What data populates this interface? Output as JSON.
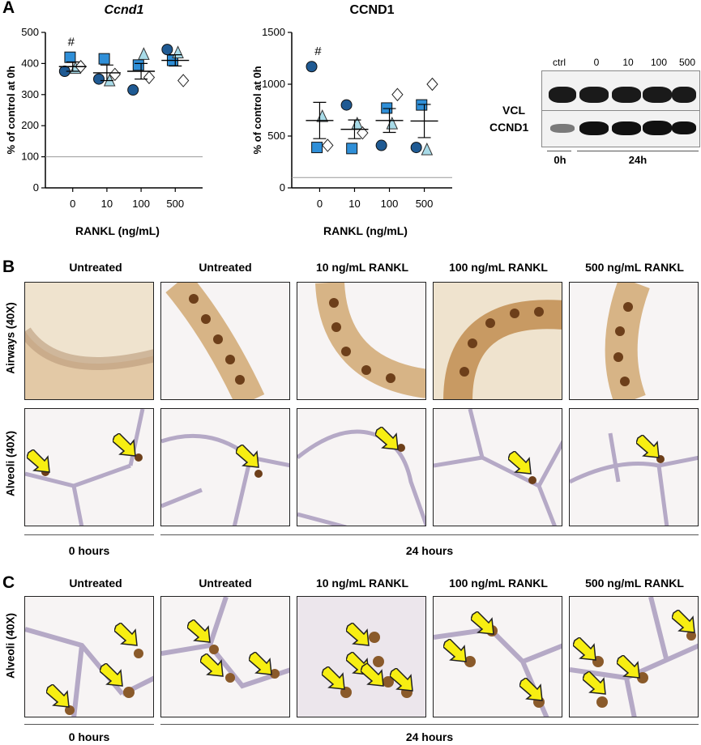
{
  "panel_labels": {
    "a": "A",
    "b": "B",
    "c": "C"
  },
  "colors": {
    "open": "#ffffff",
    "light": "#a8dbe8",
    "mid": "#2f8fd8",
    "dark": "#1f5a93",
    "arrow": "#f7ee12",
    "nucleus": "#7b4a1e"
  },
  "chart_data": [
    {
      "type": "scatter",
      "title": "Ccnd1",
      "xlabel": "RANKL (ng/mL)",
      "ylabel": "% of control at 0h",
      "categories": [
        "0",
        "10",
        "100",
        "500"
      ],
      "ylim": [
        0,
        500
      ],
      "yticks": [
        "0",
        "100",
        "200",
        "300",
        "400",
        "500"
      ],
      "reference_line": 100,
      "annotation": "#",
      "means": [
        390,
        370,
        375,
        410
      ],
      "sem": [
        15,
        25,
        25,
        18
      ],
      "series": [
        {
          "name": "circle",
          "values": [
            375,
            350,
            315,
            445
          ]
        },
        {
          "name": "square",
          "values": [
            420,
            415,
            395,
            410
          ]
        },
        {
          "name": "triangle",
          "values": [
            385,
            345,
            430,
            435
          ]
        },
        {
          "name": "diamond",
          "values": [
            390,
            365,
            355,
            345
          ]
        }
      ]
    },
    {
      "type": "scatter",
      "title": "CCND1",
      "xlabel": "RANKL (ng/mL)",
      "ylabel": "% of control at 0h",
      "categories": [
        "0",
        "10",
        "100",
        "500"
      ],
      "ylim": [
        0,
        1500
      ],
      "yticks": [
        "0",
        "500",
        "1000",
        "1500"
      ],
      "reference_line": 100,
      "annotation": "#",
      "means": [
        650,
        565,
        650,
        645
      ],
      "sem": [
        175,
        90,
        115,
        160
      ],
      "series": [
        {
          "name": "circle",
          "values": [
            1170,
            800,
            410,
            390
          ]
        },
        {
          "name": "square",
          "values": [
            390,
            380,
            770,
            800
          ]
        },
        {
          "name": "triangle",
          "values": [
            690,
            620,
            620,
            370
          ]
        },
        {
          "name": "diamond",
          "values": [
            410,
            530,
            900,
            1000
          ]
        }
      ]
    }
  ],
  "blot": {
    "lanes": [
      "ctrl",
      "0",
      "10",
      "100",
      "500"
    ],
    "rows": [
      "VCL",
      "CCND1"
    ],
    "time_0h": "0h",
    "time_24h": "24h"
  },
  "panel_b": {
    "columns": [
      "Untreated",
      "Untreated",
      "10 ng/mL RANKL",
      "100 ng/mL RANKL",
      "500 ng/mL RANKL"
    ],
    "rows": [
      "Airways (40X)",
      "Alveoli (40X)"
    ],
    "time_0": "0 hours",
    "time_24": "24 hours"
  },
  "panel_c": {
    "columns": [
      "Untreated",
      "Untreated",
      "10 ng/mL RANKL",
      "100 ng/mL RANKL",
      "500 ng/mL RANKL"
    ],
    "rows": [
      "Alveoli (40X)"
    ],
    "time_0": "0 hours",
    "time_24": "24 hours"
  }
}
